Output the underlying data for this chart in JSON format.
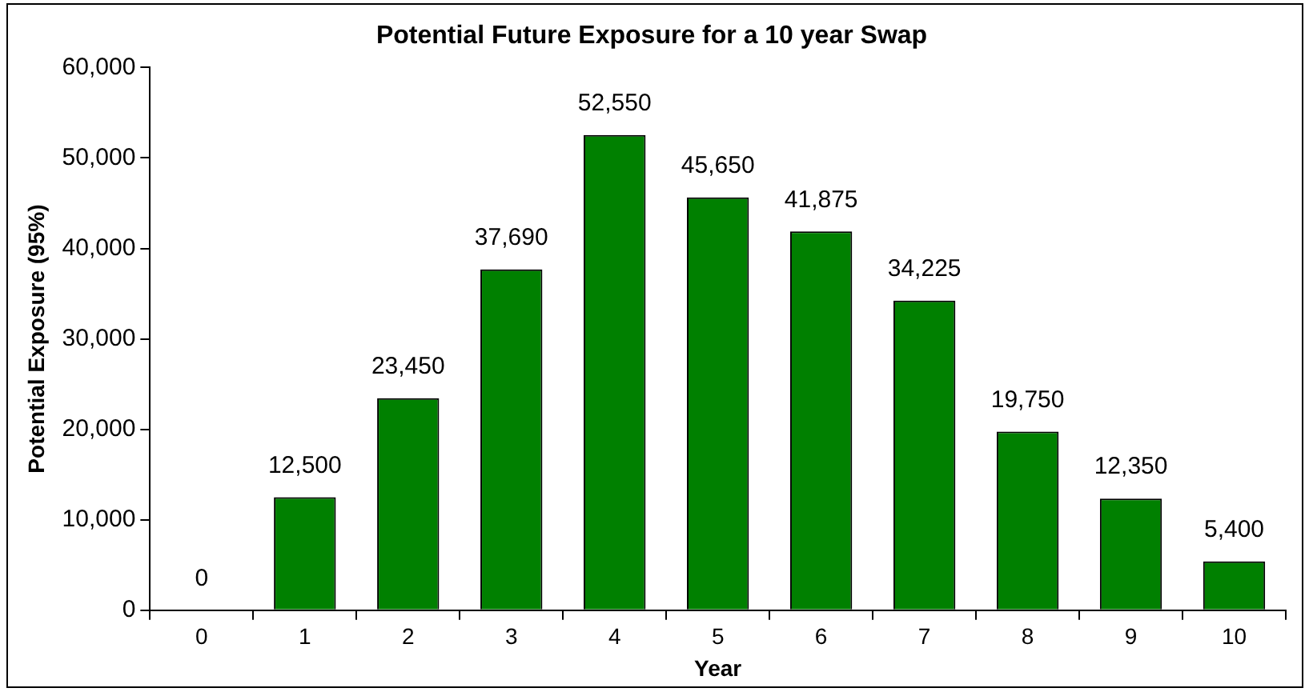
{
  "chart_data": {
    "type": "bar",
    "title": "Potential Future Exposure for a 10 year Swap",
    "xlabel": "Year",
    "ylabel": "Potential Exposure (95%)",
    "categories": [
      "0",
      "1",
      "2",
      "3",
      "4",
      "5",
      "6",
      "7",
      "8",
      "9",
      "10"
    ],
    "values": [
      0,
      12500,
      23450,
      37690,
      52550,
      45650,
      41875,
      34225,
      19750,
      12350,
      5400
    ],
    "value_labels": [
      "0",
      "12,500",
      "23,450",
      "37,690",
      "52,550",
      "45,650",
      "41,875",
      "34,225",
      "19,750",
      "12,350",
      "5,400"
    ],
    "color": "#008000",
    "ylim": [
      0,
      60000
    ],
    "yticks": [
      {
        "value": 0,
        "label": "0"
      },
      {
        "value": 10000,
        "label": "10,000"
      },
      {
        "value": 20000,
        "label": "20,000"
      },
      {
        "value": 30000,
        "label": "30,000"
      },
      {
        "value": 40000,
        "label": "40,000"
      },
      {
        "value": 50000,
        "label": "50,000"
      },
      {
        "value": 60000,
        "label": "60,000"
      }
    ],
    "grid": false,
    "legend": false
  }
}
